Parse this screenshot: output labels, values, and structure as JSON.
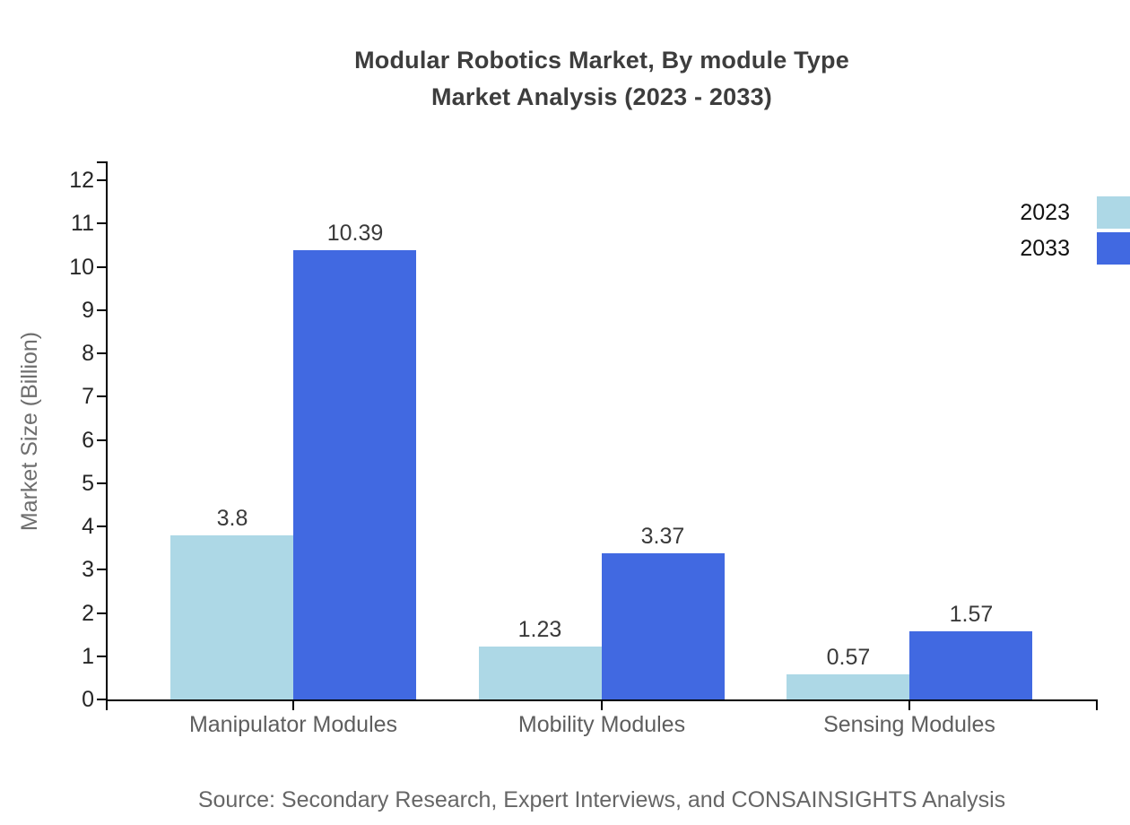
{
  "title": {
    "line1": "Modular Robotics Market, By module Type",
    "line2": "Market Analysis (2023 - 2033)"
  },
  "source_note": "Source: Secondary Research, Expert Interviews, and CONSAINSIGHTS Analysis",
  "colors": {
    "series_2023": "#ADD8E6",
    "series_2033": "#4169E1",
    "axis": "#000000",
    "title_text": "#3d3d3d",
    "value_label_text": "#3a3a3a",
    "category_text": "#5e5e5e",
    "muted_text": "#6e6e6e"
  },
  "legend": {
    "items": [
      {
        "label": "2023",
        "color": "#ADD8E6"
      },
      {
        "label": "2033",
        "color": "#4169E1"
      }
    ]
  },
  "chart_data": {
    "type": "bar",
    "title": "Modular Robotics Market, By module Type - Market Analysis (2023 - 2033)",
    "categories": [
      "Manipulator Modules",
      "Mobility Modules",
      "Sensing Modules"
    ],
    "series": [
      {
        "name": "2023",
        "color": "#ADD8E6",
        "values": [
          3.8,
          1.23,
          0.57
        ],
        "value_labels": [
          "3.8",
          "1.23",
          "0.57"
        ]
      },
      {
        "name": "2033",
        "color": "#4169E1",
        "values": [
          10.39,
          3.37,
          1.57
        ],
        "value_labels": [
          "10.39",
          "3.37",
          "1.57"
        ]
      }
    ],
    "xlabel": "",
    "ylabel": "Market Size (Billion)",
    "ylim": [
      0,
      12
    ],
    "yticks": [
      0,
      1,
      2,
      3,
      4,
      5,
      6,
      7,
      8,
      9,
      10,
      11,
      12
    ],
    "grid": false,
    "legend_position": "top-right"
  }
}
